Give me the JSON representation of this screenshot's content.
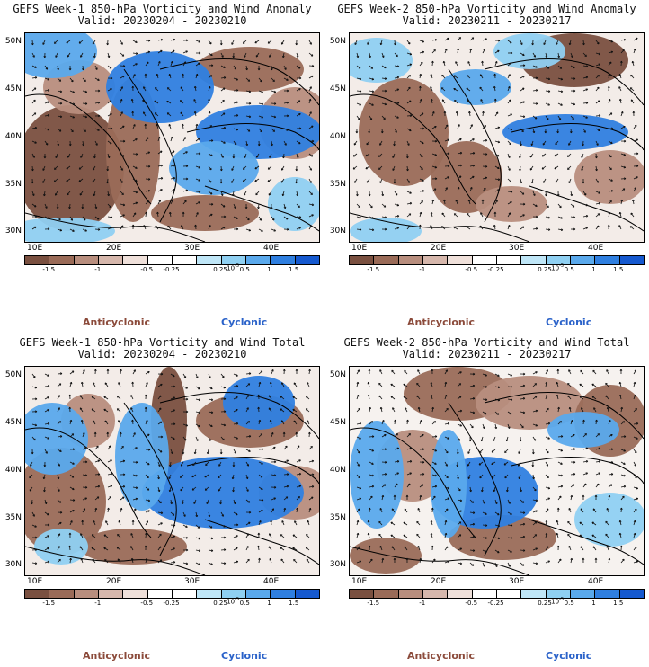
{
  "colors": {
    "bins": [
      "#7a5040",
      "#9a6b58",
      "#b88e7e",
      "#d6b7ac",
      "#efe0da",
      "#ffffff",
      "#ffffff",
      "#bfe6f7",
      "#8fd0f2",
      "#5aa9ec",
      "#2f7fe0",
      "#1559cf"
    ],
    "anticyclonic": "#8b4a3a",
    "cyclonic": "#2a62c9"
  },
  "legend": {
    "ticks": [
      "-1.5",
      "-1",
      "-0.5",
      "-0.25",
      "0.25",
      "0.5",
      "1",
      "1.5"
    ],
    "power_label": "10",
    "power_exp": "-5",
    "anticyclonic_label": "Anticyclonic",
    "cyclonic_label": "Cyclonic"
  },
  "axes": {
    "lat_labels": [
      "50N",
      "45N",
      "40N",
      "35N",
      "30N"
    ],
    "lon_labels": [
      "10E",
      "20E",
      "30E",
      "40E"
    ]
  },
  "panels": [
    {
      "title": "GEFS Week-1 850-hPa Vorticity and Wind Anomaly",
      "valid": "Valid: 20230204 - 20230210",
      "pattern": "a"
    },
    {
      "title": "GEFS Week-2 850-hPa Vorticity and Wind Anomaly",
      "valid": "Valid: 20230211 - 20230217",
      "pattern": "b"
    },
    {
      "title": "GEFS Week-1 850-hPa Vorticity and Wind Total",
      "valid": "Valid: 20230204 - 20230210",
      "pattern": "c"
    },
    {
      "title": "GEFS Week-2 850-hPa Vorticity and Wind Total",
      "valid": "Valid: 20230211 - 20230217",
      "pattern": "d"
    }
  ]
}
